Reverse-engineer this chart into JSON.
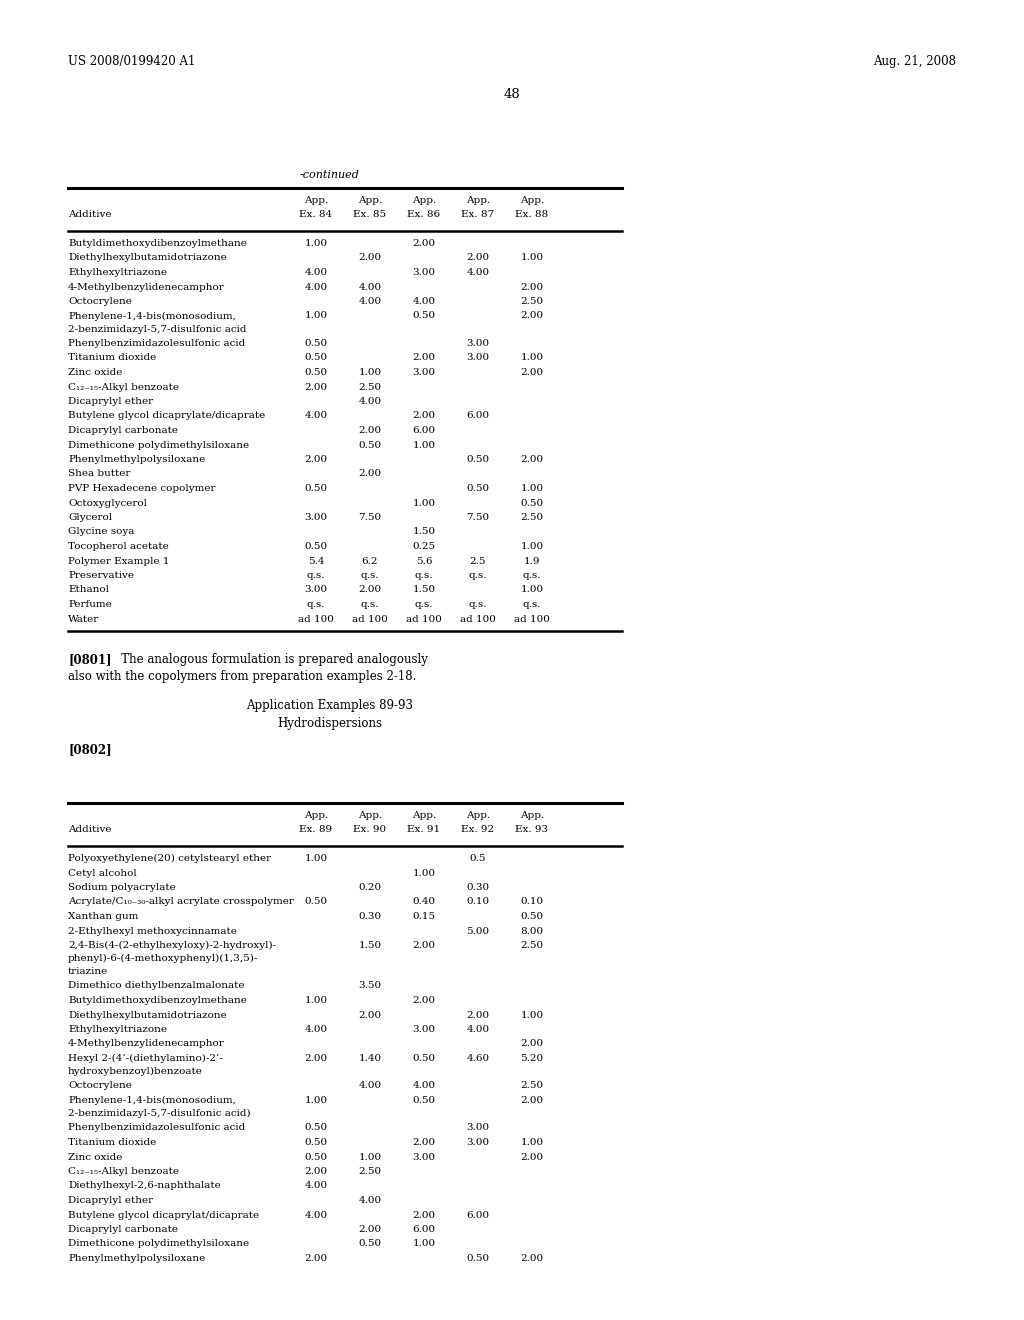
{
  "background_color": "#ffffff",
  "page_number": "48",
  "header_left": "US 2008/0199420 A1",
  "header_right": "Aug. 21, 2008",
  "continued_label": "-continued",
  "table1": {
    "col_headers": [
      [
        "App.",
        "App.",
        "App.",
        "App.",
        "App."
      ],
      [
        "Ex. 84",
        "Ex. 85",
        "Ex. 86",
        "Ex. 87",
        "Ex. 88"
      ]
    ],
    "rows": [
      [
        "Butyldimethoxydibenzoylmethane",
        "1.00",
        "",
        "2.00",
        "",
        ""
      ],
      [
        "Diethylhexylbutamidotriazone",
        "",
        "2.00",
        "",
        "2.00",
        "1.00"
      ],
      [
        "Ethylhexyltriazone",
        "4.00",
        "",
        "3.00",
        "4.00",
        ""
      ],
      [
        "4-Methylbenzylidenecamphor",
        "4.00",
        "4.00",
        "",
        "",
        "2.00"
      ],
      [
        "Octocrylene",
        "",
        "4.00",
        "4.00",
        "",
        "2.50"
      ],
      [
        "Phenylene-1,4-bis(monosodium,\n2-benzimidazyl-5,7-disulfonic acid",
        "1.00",
        "",
        "0.50",
        "",
        "2.00"
      ],
      [
        "Phenylbenzimidazolesulfonic acid",
        "0.50",
        "",
        "",
        "3.00",
        ""
      ],
      [
        "Titanium dioxide",
        "0.50",
        "",
        "2.00",
        "3.00",
        "1.00"
      ],
      [
        "Zinc oxide",
        "0.50",
        "1.00",
        "3.00",
        "",
        "2.00"
      ],
      [
        "C₁₂₋₁₅-Alkyl benzoate",
        "2.00",
        "2.50",
        "",
        "",
        ""
      ],
      [
        "Dicaprylyl ether",
        "",
        "4.00",
        "",
        "",
        ""
      ],
      [
        "Butylene glycol dicaprylate/dicaprate",
        "4.00",
        "",
        "2.00",
        "6.00",
        ""
      ],
      [
        "Dicaprylyl carbonate",
        "",
        "2.00",
        "6.00",
        "",
        ""
      ],
      [
        "Dimethicone polydimethylsiloxane",
        "",
        "0.50",
        "1.00",
        "",
        ""
      ],
      [
        "Phenylmethylpolysiloxane",
        "2.00",
        "",
        "",
        "0.50",
        "2.00"
      ],
      [
        "Shea butter",
        "",
        "2.00",
        "",
        "",
        ""
      ],
      [
        "PVP Hexadecene copolymer",
        "0.50",
        "",
        "",
        "0.50",
        "1.00"
      ],
      [
        "Octoxyglycerol",
        "",
        "",
        "1.00",
        "",
        "0.50"
      ],
      [
        "Glycerol",
        "3.00",
        "7.50",
        "",
        "7.50",
        "2.50"
      ],
      [
        "Glycine soya",
        "",
        "",
        "1.50",
        "",
        ""
      ],
      [
        "Tocopherol acetate",
        "0.50",
        "",
        "0.25",
        "",
        "1.00"
      ],
      [
        "Polymer Example 1",
        "5.4",
        "6.2",
        "5.6",
        "2.5",
        "1.9"
      ],
      [
        "Preservative",
        "q.s.",
        "q.s.",
        "q.s.",
        "q.s.",
        "q.s."
      ],
      [
        "Ethanol",
        "3.00",
        "2.00",
        "1.50",
        "",
        "1.00"
      ],
      [
        "Perfume",
        "q.s.",
        "q.s.",
        "q.s.",
        "q.s.",
        "q.s."
      ],
      [
        "Water",
        "ad 100",
        "ad 100",
        "ad 100",
        "ad 100",
        "ad 100"
      ]
    ]
  },
  "para_0801_bold": "[0801]",
  "para_0801_text": "   The analogous formulation is prepared analogously",
  "para_0801_line2": "also with the copolymers from preparation examples 2-18.",
  "section_title1": "Application Examples 89-93",
  "section_title2": "Hydrodispersions",
  "paragraph_0802": "[0802]",
  "table2": {
    "col_headers": [
      [
        "App.",
        "App.",
        "App.",
        "App.",
        "App."
      ],
      [
        "Ex. 89",
        "Ex. 90",
        "Ex. 91",
        "Ex. 92",
        "Ex. 93"
      ]
    ],
    "rows": [
      [
        "Polyoxyethylene(20) cetylstearyl ether",
        "1.00",
        "",
        "",
        "0.5",
        ""
      ],
      [
        "Cetyl alcohol",
        "",
        "",
        "1.00",
        "",
        ""
      ],
      [
        "Sodium polyacrylate",
        "",
        "0.20",
        "",
        "0.30",
        ""
      ],
      [
        "Acrylate/C₁₀₋₃₀-alkyl acrylate crosspolymer",
        "0.50",
        "",
        "0.40",
        "0.10",
        "0.10"
      ],
      [
        "Xanthan gum",
        "",
        "0.30",
        "0.15",
        "",
        "0.50"
      ],
      [
        "2-Ethylhexyl methoxycinnamate",
        "",
        "",
        "",
        "5.00",
        "8.00"
      ],
      [
        "2,4-Bis(4-(2-ethylhexyloxy)-2-hydroxyl)-\nphenyl)-6-(4-methoxyphenyl)(1,3,5)-\ntriazine",
        "",
        "1.50",
        "2.00",
        "",
        "2.50"
      ],
      [
        "Dimethico diethylbenzalmalonate",
        "",
        "3.50",
        "",
        "",
        ""
      ],
      [
        "Butyldimethoxydibenzoylmethane",
        "1.00",
        "",
        "2.00",
        "",
        ""
      ],
      [
        "Diethylhexylbutamidotriazone",
        "",
        "2.00",
        "",
        "2.00",
        "1.00"
      ],
      [
        "Ethylhexyltriazone",
        "4.00",
        "",
        "3.00",
        "4.00",
        ""
      ],
      [
        "4-Methylbenzylidenecamphor",
        "",
        "",
        "",
        "",
        "2.00"
      ],
      [
        "Hexyl 2-(4’-(diethylamino)-2’-\nhydroxybenzoyl)benzoate",
        "2.00",
        "1.40",
        "0.50",
        "4.60",
        "5.20"
      ],
      [
        "Octocrylene",
        "",
        "4.00",
        "4.00",
        "",
        "2.50"
      ],
      [
        "Phenylene-1,4-bis(monosodium,\n2-benzimidazyl-5,7-disulfonic acid)",
        "1.00",
        "",
        "0.50",
        "",
        "2.00"
      ],
      [
        "Phenylbenzimidazolesulfonic acid",
        "0.50",
        "",
        "",
        "3.00",
        ""
      ],
      [
        "Titanium dioxide",
        "0.50",
        "",
        "2.00",
        "3.00",
        "1.00"
      ],
      [
        "Zinc oxide",
        "0.50",
        "1.00",
        "3.00",
        "",
        "2.00"
      ],
      [
        "C₁₂₋₁₅-Alkyl benzoate",
        "2.00",
        "2.50",
        "",
        "",
        ""
      ],
      [
        "Diethylhexyl-2,6-naphthalate",
        "4.00",
        "",
        "",
        "",
        ""
      ],
      [
        "Dicaprylyl ether",
        "",
        "4.00",
        "",
        "",
        ""
      ],
      [
        "Butylene glycol dicaprylat/dicaprate",
        "4.00",
        "",
        "2.00",
        "6.00",
        ""
      ],
      [
        "Dicaprylyl carbonate",
        "",
        "2.00",
        "6.00",
        "",
        ""
      ],
      [
        "Dimethicone polydimethylsiloxane",
        "",
        "0.50",
        "1.00",
        "",
        ""
      ],
      [
        "Phenylmethylpolysiloxane",
        "2.00",
        "",
        "",
        "0.50",
        "2.00"
      ]
    ]
  }
}
